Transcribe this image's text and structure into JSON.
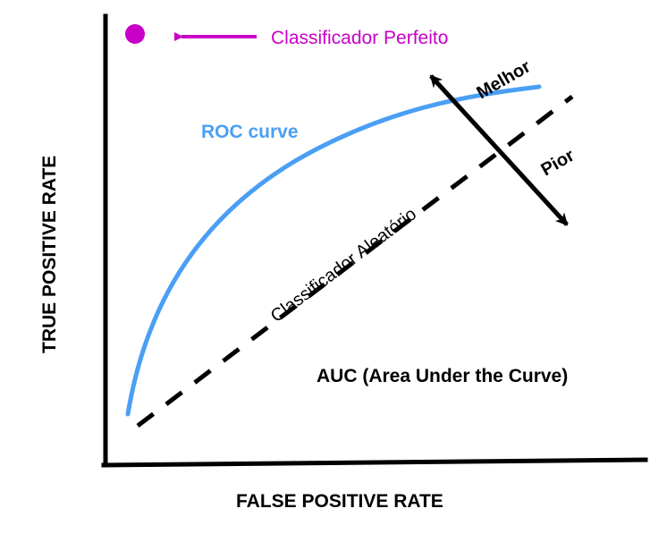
{
  "colors": {
    "background": "#ffffff",
    "axis": "#000000",
    "roc_curve": "#4a9ff5",
    "perfect": "#c800c8",
    "text": "#000000"
  },
  "labels": {
    "y_axis": "TRUE POSITIVE RATE",
    "x_axis": "FALSE POSITIVE RATE",
    "perfect_classifier": "Classificador Perfeito",
    "roc_curve": "ROC curve",
    "random_classifier": "Classificador Aleatório",
    "better": "Melhor",
    "worse": "Pior",
    "auc": "AUC (Area Under the Curve)"
  },
  "icons": {
    "perfect_point": "filled-circle-icon",
    "perfect_arrow": "left-arrow-icon",
    "direction_arrow": "double-headed-arrow-icon"
  }
}
